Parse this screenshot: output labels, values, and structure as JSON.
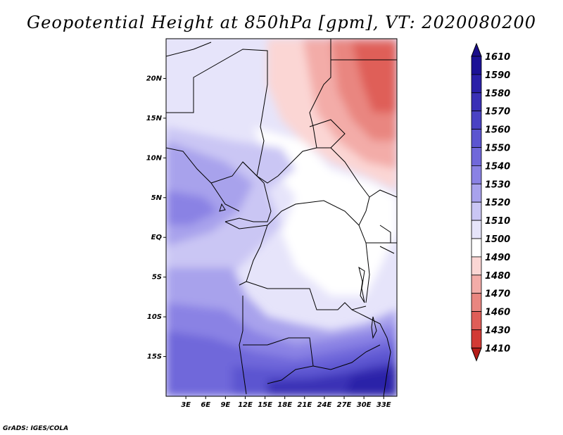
{
  "title": "Geopotential Height at 850hPa [gpm], VT: 2020080200",
  "credit": "GrADS: IGES/COLA",
  "map": {
    "variable": "Geopotential Height",
    "level": "850hPa",
    "units": "gpm",
    "valid_time": "2020080200",
    "lon_range": [
      0,
      35
    ],
    "lat_range": [
      -20,
      25
    ],
    "lon_ticks": [
      {
        "value": 3,
        "label": "3E"
      },
      {
        "value": 6,
        "label": "6E"
      },
      {
        "value": 9,
        "label": "9E"
      },
      {
        "value": 12,
        "label": "12E"
      },
      {
        "value": 15,
        "label": "15E"
      },
      {
        "value": 18,
        "label": "18E"
      },
      {
        "value": 21,
        "label": "21E"
      },
      {
        "value": 24,
        "label": "24E"
      },
      {
        "value": 27,
        "label": "27E"
      },
      {
        "value": 30,
        "label": "30E"
      },
      {
        "value": 33,
        "label": "33E"
      }
    ],
    "lat_ticks": [
      {
        "value": 20,
        "label": "20N"
      },
      {
        "value": 15,
        "label": "15N"
      },
      {
        "value": 10,
        "label": "10N"
      },
      {
        "value": 5,
        "label": "5N"
      },
      {
        "value": 0,
        "label": "EQ"
      },
      {
        "value": -5,
        "label": "5S"
      },
      {
        "value": -10,
        "label": "10S"
      },
      {
        "value": -15,
        "label": "15S"
      }
    ]
  },
  "colorbar": {
    "levels": [
      {
        "label": "1610",
        "color": "#1c1296"
      },
      {
        "label": "1590",
        "color": "#2a20a8"
      },
      {
        "label": "1580",
        "color": "#3a30b6"
      },
      {
        "label": "1570",
        "color": "#4a42c4"
      },
      {
        "label": "1560",
        "color": "#5c55d0"
      },
      {
        "label": "1550",
        "color": "#7068da"
      },
      {
        "label": "1540",
        "color": "#8a82e4"
      },
      {
        "label": "1530",
        "color": "#a8a2ec"
      },
      {
        "label": "1520",
        "color": "#cac6f4"
      },
      {
        "label": "1510",
        "color": "#e6e4fa"
      },
      {
        "label": "1500",
        "color": "#ffffff"
      },
      {
        "label": "1490",
        "color": "#fbd6d4"
      },
      {
        "label": "1480",
        "color": "#f3aca8"
      },
      {
        "label": "1470",
        "color": "#e98680"
      },
      {
        "label": "1460",
        "color": "#df5e58"
      },
      {
        "label": "1430",
        "color": "#d23a34"
      },
      {
        "label": "1410",
        "color": "#c01e1a"
      }
    ],
    "top_color": "#1a0e8a",
    "bottom_color": "#b41c18"
  }
}
